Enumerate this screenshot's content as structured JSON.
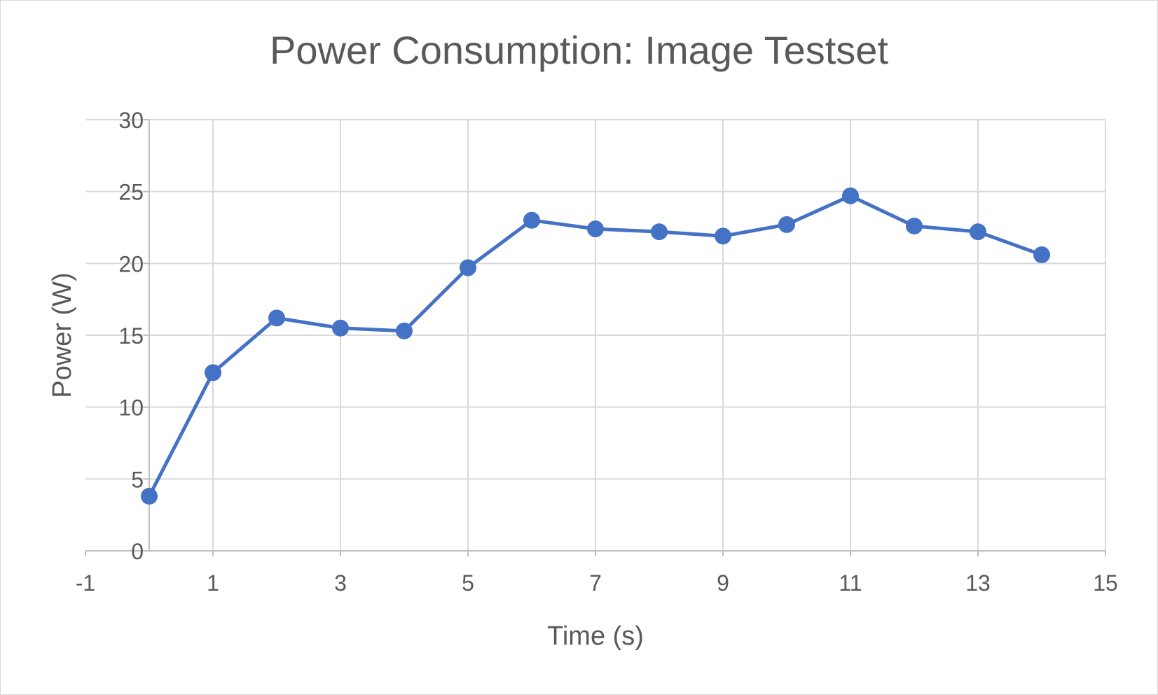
{
  "chart_data": {
    "type": "scatter",
    "title": "Power Consumption: Image Testset",
    "xlabel": "Time (s)",
    "ylabel": "Power (W)",
    "xlim": [
      -1,
      15
    ],
    "ylim": [
      0,
      30
    ],
    "x_ticks": [
      -1,
      1,
      3,
      5,
      7,
      9,
      11,
      13,
      15
    ],
    "y_ticks": [
      0,
      5,
      10,
      15,
      20,
      25,
      30
    ],
    "grid": true,
    "legend": "none",
    "line_color": "#4472C4",
    "series": [
      {
        "x": [
          0,
          1,
          2,
          3,
          4,
          5,
          6,
          7,
          8,
          9,
          10,
          11,
          12,
          13,
          14
        ],
        "y": [
          3.8,
          12.4,
          16.2,
          15.5,
          15.3,
          19.7,
          23.0,
          22.4,
          22.2,
          21.9,
          22.7,
          24.7,
          22.6,
          22.2,
          20.6
        ]
      }
    ]
  }
}
